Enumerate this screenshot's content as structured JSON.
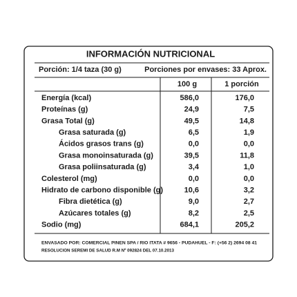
{
  "title": "INFORMACIÓN NUTRICIONAL",
  "portion": "Porción:  1/4 taza (30 g)",
  "portions_per_container": "Porciones por envases: 33 Aprox.",
  "columns": [
    "100 g",
    "1 porción"
  ],
  "rows": [
    [
      "Energía (kcal)",
      "586,0",
      "176,0"
    ],
    [
      "Proteínas (g)",
      "24,9",
      "7,5"
    ],
    [
      "Grasa Total (g)",
      "49,5",
      "14,8"
    ],
    [
      "Grasa saturada (g)",
      "6,5",
      "1,9"
    ],
    [
      "Ácidos grasos trans (g)",
      "0,0",
      "0,0"
    ],
    [
      "Grasa monoinsaturada (g)",
      "39,5",
      "11,8"
    ],
    [
      "Grasa poliinsaturada (g)",
      "3,4",
      "1,0"
    ],
    [
      "Colesterol (mg)",
      "0,0",
      "0,0"
    ],
    [
      "Hidrato de carbono disponible (g)",
      "10,6",
      "3,2"
    ],
    [
      "Fibra dietética (g)",
      "9,0",
      "2,7"
    ],
    [
      "Azúcares totales (g)",
      "8,2",
      "2,5"
    ],
    [
      "Sodio (mg)",
      "684,1",
      "205,2"
    ]
  ],
  "footer": [
    "ENVASADO POR: COMERCIAL PINEN SPA / RIO ITATA # 9656 - PUDAHUEL - F: (+56 2) 2694 08 41",
    "RESOLUCION SEREMI DE SALUD R.M Nº 092824 DEL 07.10.2013"
  ]
}
